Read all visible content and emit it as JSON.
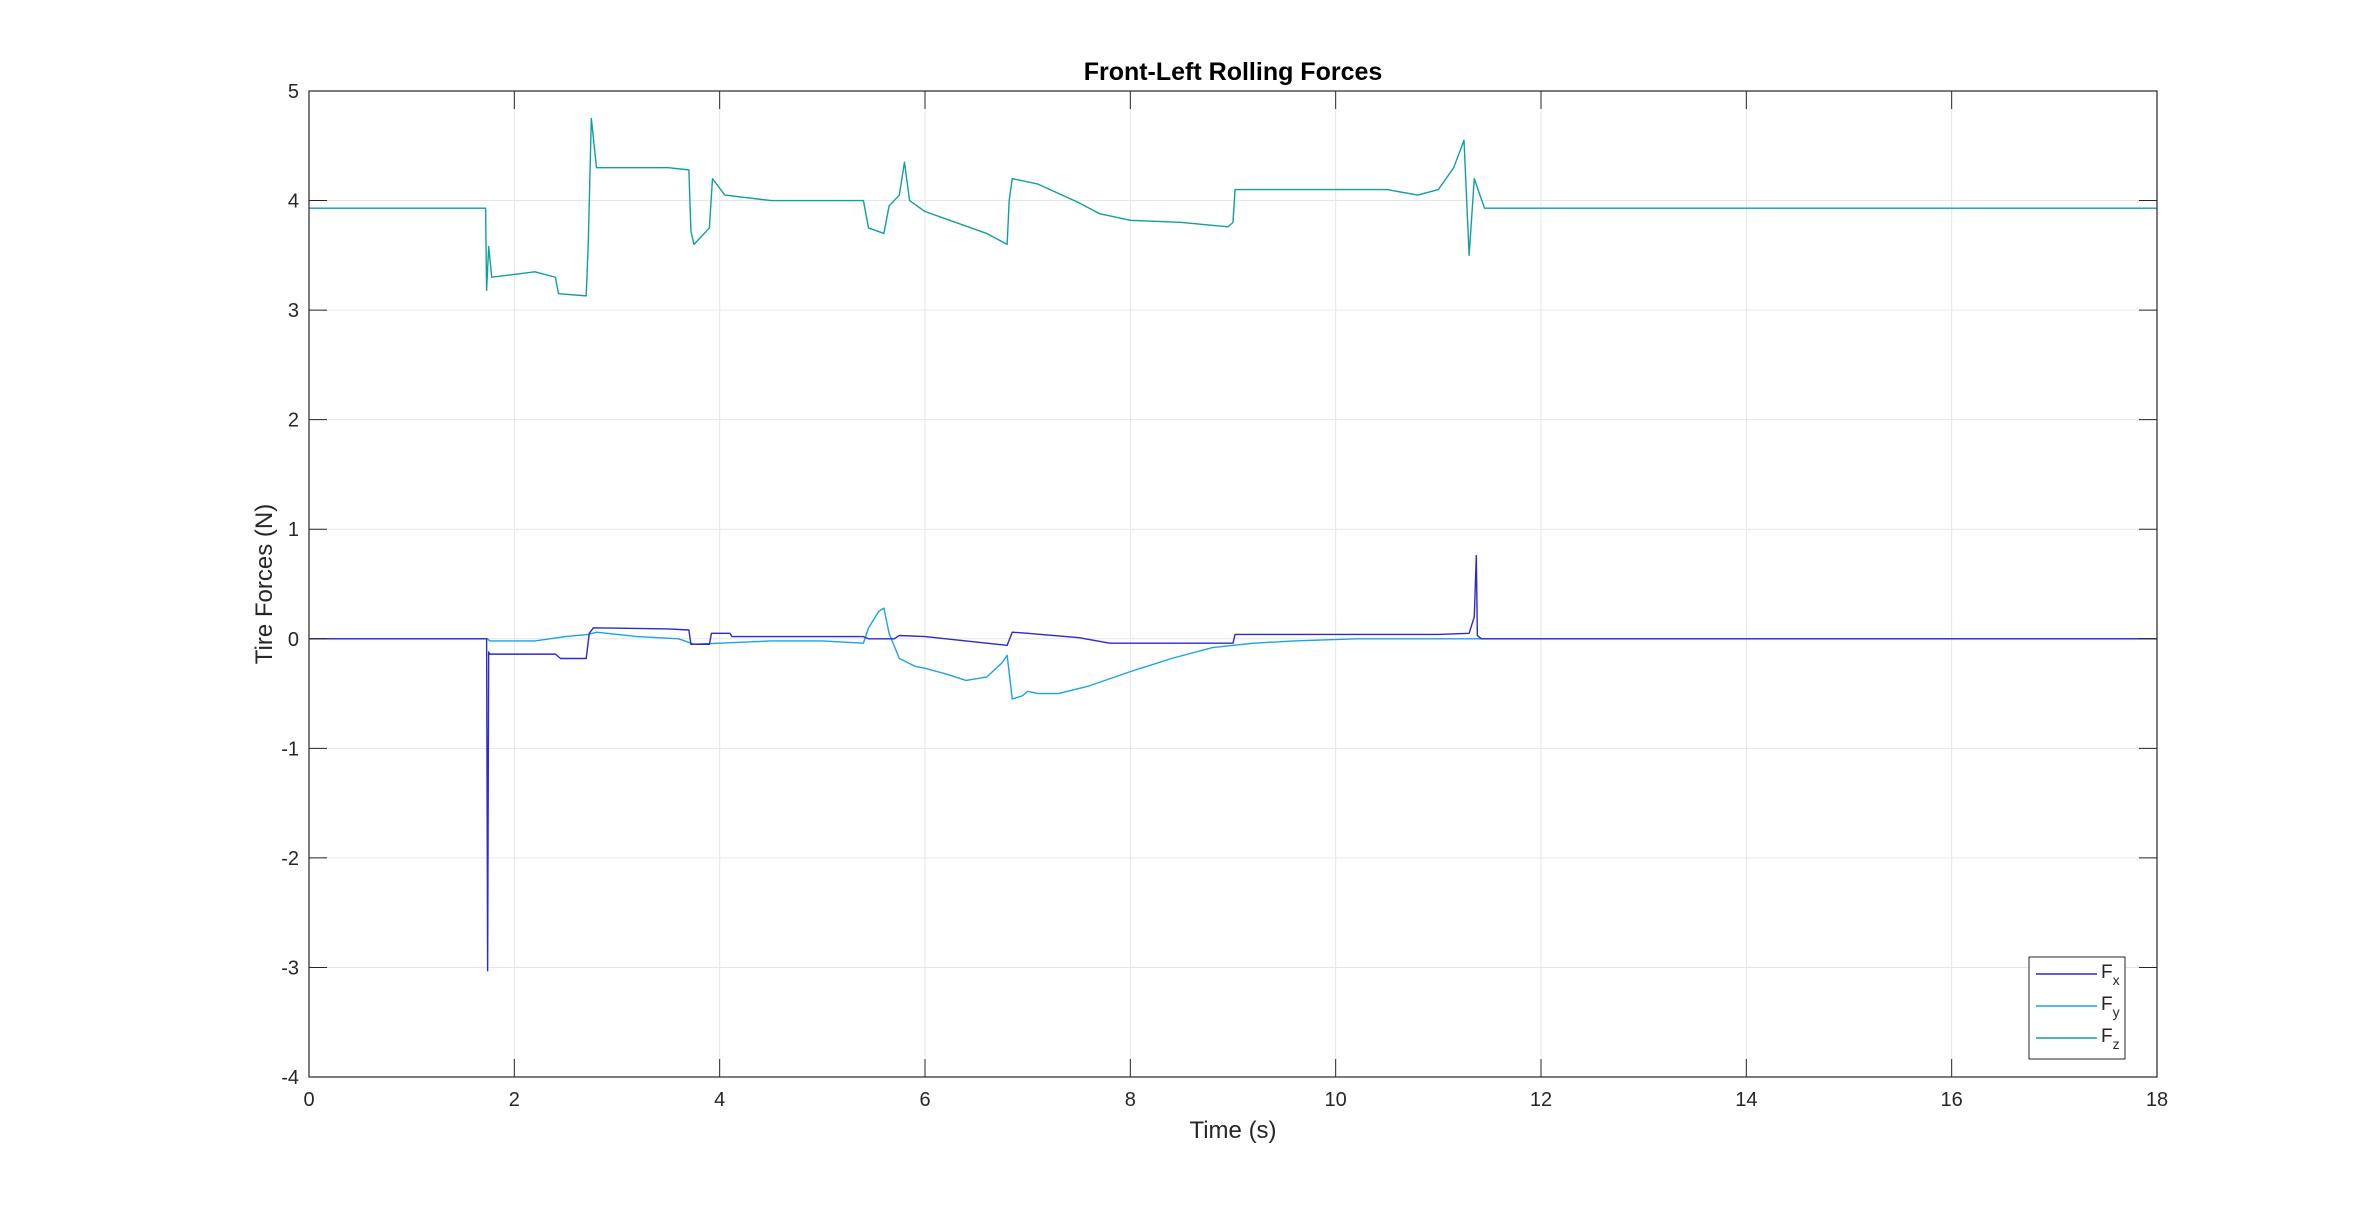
{
  "chart_data": {
    "type": "line",
    "title": "Front-Left Rolling Forces",
    "xlabel": "Time (s)",
    "ylabel": "Tire Forces (N)",
    "xlim": [
      0,
      18
    ],
    "ylim": [
      -4,
      5
    ],
    "xticks": [
      0,
      2,
      4,
      6,
      8,
      10,
      12,
      14,
      16,
      18
    ],
    "yticks": [
      -4,
      -3,
      -2,
      -1,
      0,
      1,
      2,
      3,
      4,
      5
    ],
    "grid": true,
    "legend_position": "bottom-right",
    "series": [
      {
        "name": "Fx",
        "label_main": "F",
        "label_sub": "x",
        "color": "#2a2acf",
        "noise": 0.004,
        "points": [
          [
            0,
            0
          ],
          [
            1.73,
            0
          ],
          [
            1.74,
            -3.03
          ],
          [
            1.75,
            -0.12
          ],
          [
            1.76,
            -0.14
          ],
          [
            2.4,
            -0.14
          ],
          [
            2.45,
            -0.18
          ],
          [
            2.7,
            -0.18
          ],
          [
            2.73,
            0.05
          ],
          [
            2.77,
            0.1
          ],
          [
            3.5,
            0.09
          ],
          [
            3.7,
            0.08
          ],
          [
            3.72,
            -0.05
          ],
          [
            3.9,
            -0.05
          ],
          [
            3.92,
            0.05
          ],
          [
            4.1,
            0.05
          ],
          [
            4.12,
            0.02
          ],
          [
            5.4,
            0.02
          ],
          [
            5.45,
            0.0
          ],
          [
            5.7,
            0.0
          ],
          [
            5.75,
            0.03
          ],
          [
            6.0,
            0.02
          ],
          [
            6.5,
            -0.03
          ],
          [
            6.8,
            -0.06
          ],
          [
            6.85,
            0.06
          ],
          [
            7.0,
            0.05
          ],
          [
            7.5,
            0.01
          ],
          [
            7.8,
            -0.04
          ],
          [
            8.5,
            -0.04
          ],
          [
            9.0,
            -0.04
          ],
          [
            9.02,
            0.04
          ],
          [
            10,
            0.04
          ],
          [
            11.0,
            0.04
          ],
          [
            11.3,
            0.05
          ],
          [
            11.35,
            0.2
          ],
          [
            11.37,
            0.76
          ],
          [
            11.38,
            0.03
          ],
          [
            11.42,
            0.0
          ],
          [
            18,
            0.0
          ]
        ]
      },
      {
        "name": "Fy",
        "label_main": "F",
        "label_sub": "y",
        "color": "#1ba3e8",
        "noise": 0.0,
        "points": [
          [
            0,
            0
          ],
          [
            1.74,
            0
          ],
          [
            1.76,
            -0.02
          ],
          [
            2.2,
            -0.02
          ],
          [
            2.5,
            0.02
          ],
          [
            2.72,
            0.04
          ],
          [
            2.8,
            0.06
          ],
          [
            3.2,
            0.02
          ],
          [
            3.6,
            0.0
          ],
          [
            3.75,
            -0.05
          ],
          [
            4.0,
            -0.04
          ],
          [
            4.5,
            -0.02
          ],
          [
            5.0,
            -0.02
          ],
          [
            5.4,
            -0.04
          ],
          [
            5.45,
            0.1
          ],
          [
            5.55,
            0.25
          ],
          [
            5.6,
            0.28
          ],
          [
            5.65,
            0.05
          ],
          [
            5.75,
            -0.18
          ],
          [
            5.9,
            -0.25
          ],
          [
            6.0,
            -0.27
          ],
          [
            6.2,
            -0.32
          ],
          [
            6.4,
            -0.38
          ],
          [
            6.6,
            -0.35
          ],
          [
            6.75,
            -0.22
          ],
          [
            6.8,
            -0.15
          ],
          [
            6.85,
            -0.55
          ],
          [
            6.95,
            -0.52
          ],
          [
            7.0,
            -0.48
          ],
          [
            7.1,
            -0.5
          ],
          [
            7.3,
            -0.5
          ],
          [
            7.6,
            -0.43
          ],
          [
            8.0,
            -0.3
          ],
          [
            8.4,
            -0.18
          ],
          [
            8.8,
            -0.08
          ],
          [
            9.2,
            -0.04
          ],
          [
            9.6,
            -0.02
          ],
          [
            10.2,
            0.0
          ],
          [
            18,
            0.0
          ]
        ]
      },
      {
        "name": "Fz",
        "label_main": "F",
        "label_sub": "z",
        "color": "#109f9f",
        "noise": 0.0,
        "points": [
          [
            0,
            3.93
          ],
          [
            1.72,
            3.93
          ],
          [
            1.73,
            3.18
          ],
          [
            1.75,
            3.58
          ],
          [
            1.78,
            3.3
          ],
          [
            2.2,
            3.35
          ],
          [
            2.4,
            3.3
          ],
          [
            2.43,
            3.15
          ],
          [
            2.7,
            3.13
          ],
          [
            2.72,
            3.6
          ],
          [
            2.75,
            4.75
          ],
          [
            2.8,
            4.3
          ],
          [
            3.5,
            4.3
          ],
          [
            3.7,
            4.28
          ],
          [
            3.72,
            3.72
          ],
          [
            3.75,
            3.6
          ],
          [
            3.9,
            3.75
          ],
          [
            3.93,
            4.2
          ],
          [
            4.05,
            4.05
          ],
          [
            4.5,
            4.0
          ],
          [
            5.0,
            4.0
          ],
          [
            5.4,
            4.0
          ],
          [
            5.45,
            3.75
          ],
          [
            5.6,
            3.7
          ],
          [
            5.65,
            3.95
          ],
          [
            5.75,
            4.05
          ],
          [
            5.8,
            4.35
          ],
          [
            5.85,
            4.0
          ],
          [
            6.0,
            3.9
          ],
          [
            6.3,
            3.8
          ],
          [
            6.6,
            3.7
          ],
          [
            6.8,
            3.6
          ],
          [
            6.82,
            4.0
          ],
          [
            6.85,
            4.2
          ],
          [
            7.1,
            4.15
          ],
          [
            7.5,
            3.98
          ],
          [
            7.7,
            3.88
          ],
          [
            8.0,
            3.82
          ],
          [
            8.5,
            3.8
          ],
          [
            8.95,
            3.76
          ],
          [
            9.0,
            3.8
          ],
          [
            9.02,
            4.1
          ],
          [
            9.5,
            4.1
          ],
          [
            10.0,
            4.1
          ],
          [
            10.5,
            4.1
          ],
          [
            10.8,
            4.05
          ],
          [
            11.0,
            4.1
          ],
          [
            11.15,
            4.3
          ],
          [
            11.25,
            4.55
          ],
          [
            11.3,
            3.5
          ],
          [
            11.35,
            4.2
          ],
          [
            11.45,
            3.93
          ],
          [
            18,
            3.93
          ]
        ]
      }
    ]
  }
}
